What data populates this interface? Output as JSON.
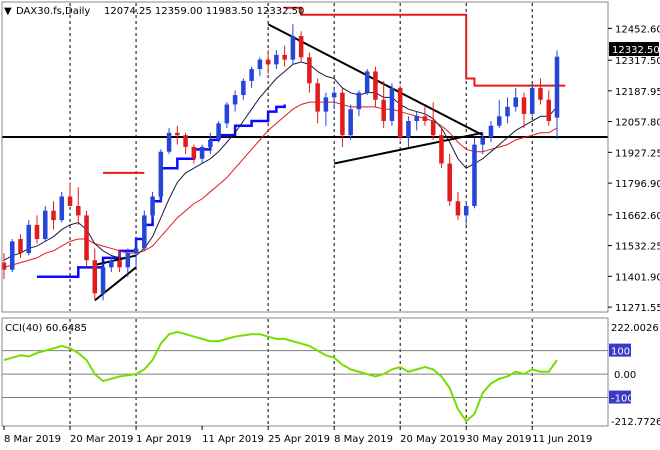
{
  "header": {
    "symbol": "DAX30.fs,Daily",
    "ohlc": "12074.25 12359.00 11983.50 12332.50"
  },
  "indicator": {
    "label": "CCI(40) 60.6485",
    "scale_top": "222.0026",
    "scale_bottom": "-212.7726"
  },
  "colors": {
    "bull": "#2646d8",
    "bear": "#e01d1d",
    "ema_fast": "#1a1a40",
    "ema_slow": "#e01d1d",
    "support_line": "#0a0aff",
    "resistance_line": "#e01d1d",
    "cci": "#77dd00",
    "trend": "#000000"
  },
  "chart_data": {
    "type": "candlestick",
    "price_axis": {
      "ticks": [
        "12452.60",
        "12317.50",
        "12187.95",
        "12057.80",
        "11927.25",
        "11796.90",
        "11662.60",
        "11532.25",
        "11401.90",
        "11271.55"
      ],
      "range": [
        11255,
        12560
      ]
    },
    "current_price": "12332.50",
    "x_axis_labels": [
      {
        "label": "8 Mar 2019",
        "bar": 0
      },
      {
        "label": "20 Mar 2019",
        "bar": 8
      },
      {
        "label": "1 Apr 2019",
        "bar": 16
      },
      {
        "label": "11 Apr 2019",
        "bar": 24
      },
      {
        "label": "25 Apr 2019",
        "bar": 32
      },
      {
        "label": "8 May 2019",
        "bar": 40
      },
      {
        "label": "20 May 2019",
        "bar": 48
      },
      {
        "label": "30 May 2019",
        "bar": 56
      },
      {
        "label": "11 Jun 2019",
        "bar": 64
      }
    ],
    "vertical_separators": [
      8,
      16,
      32,
      40,
      48,
      56,
      64
    ],
    "candles": [
      [
        11460,
        11500,
        11390,
        11430
      ],
      [
        11430,
        11560,
        11420,
        11550
      ],
      [
        11560,
        11580,
        11480,
        11500
      ],
      [
        11500,
        11640,
        11490,
        11620
      ],
      [
        11620,
        11660,
        11540,
        11560
      ],
      [
        11560,
        11700,
        11550,
        11680
      ],
      [
        11680,
        11720,
        11600,
        11640
      ],
      [
        11640,
        11760,
        11630,
        11740
      ],
      [
        11740,
        11800,
        11700,
        11700
      ],
      [
        11700,
        11780,
        11620,
        11660
      ],
      [
        11660,
        11680,
        11440,
        11470
      ],
      [
        11470,
        11520,
        11300,
        11330
      ],
      [
        11330,
        11460,
        11300,
        11440
      ],
      [
        11440,
        11480,
        11420,
        11470
      ],
      [
        11470,
        11510,
        11420,
        11440
      ],
      [
        11440,
        11520,
        11400,
        11500
      ],
      [
        11500,
        11560,
        11440,
        11520
      ],
      [
        11520,
        11680,
        11510,
        11660
      ],
      [
        11660,
        11760,
        11650,
        11740
      ],
      [
        11740,
        11940,
        11720,
        11930
      ],
      [
        11930,
        12030,
        11920,
        12010
      ],
      [
        12010,
        12040,
        11960,
        12000
      ],
      [
        12000,
        12010,
        11920,
        11950
      ],
      [
        11950,
        11960,
        11880,
        11900
      ],
      [
        11900,
        11960,
        11880,
        11950
      ],
      [
        11950,
        12010,
        11920,
        11980
      ],
      [
        11980,
        12060,
        11970,
        12050
      ],
      [
        12050,
        12140,
        12030,
        12130
      ],
      [
        12130,
        12190,
        12100,
        12170
      ],
      [
        12170,
        12240,
        12150,
        12230
      ],
      [
        12230,
        12290,
        12200,
        12280
      ],
      [
        12280,
        12330,
        12250,
        12320
      ],
      [
        12320,
        12360,
        12260,
        12300
      ],
      [
        12300,
        12360,
        12280,
        12340
      ],
      [
        12340,
        12380,
        12290,
        12320
      ],
      [
        12320,
        12470,
        12300,
        12420
      ],
      [
        12420,
        12440,
        12310,
        12330
      ],
      [
        12330,
        12350,
        12180,
        12220
      ],
      [
        12220,
        12240,
        12050,
        12100
      ],
      [
        12100,
        12180,
        12040,
        12160
      ],
      [
        12160,
        12200,
        12110,
        12180
      ],
      [
        12180,
        12200,
        11950,
        12000
      ],
      [
        12000,
        12130,
        11980,
        12110
      ],
      [
        12110,
        12190,
        12080,
        12180
      ],
      [
        12180,
        12280,
        12170,
        12270
      ],
      [
        12270,
        12290,
        12120,
        12150
      ],
      [
        12150,
        12230,
        12030,
        12060
      ],
      [
        12060,
        12220,
        12040,
        12200
      ],
      [
        12200,
        12210,
        11980,
        11990
      ],
      [
        11990,
        12080,
        11950,
        12060
      ],
      [
        12060,
        12100,
        12020,
        12080
      ],
      [
        12080,
        12120,
        12040,
        12060
      ],
      [
        12060,
        12140,
        11980,
        12000
      ],
      [
        12000,
        12030,
        11860,
        11880
      ],
      [
        11880,
        11920,
        11700,
        11720
      ],
      [
        11720,
        11760,
        11640,
        11660
      ],
      [
        11660,
        11720,
        11620,
        11700
      ],
      [
        11700,
        11990,
        11690,
        11960
      ],
      [
        11960,
        12010,
        11920,
        11990
      ],
      [
        11990,
        12060,
        11970,
        12040
      ],
      [
        12040,
        12150,
        12030,
        12080
      ],
      [
        12080,
        12160,
        12050,
        12120
      ],
      [
        12120,
        12200,
        12100,
        12160
      ],
      [
        12160,
        12180,
        12030,
        12090
      ],
      [
        12090,
        12220,
        12080,
        12200
      ],
      [
        12200,
        12240,
        12130,
        12150
      ],
      [
        12150,
        12190,
        12040,
        12060
      ],
      [
        12074.25,
        12359,
        11983.5,
        12332.5
      ]
    ],
    "ema_fast": [
      11470,
      11490,
      11500,
      11520,
      11530,
      11550,
      11570,
      11600,
      11620,
      11630,
      11600,
      11540,
      11510,
      11490,
      11480,
      11480,
      11490,
      11520,
      11570,
      11650,
      11730,
      11800,
      11840,
      11860,
      11880,
      11900,
      11930,
      11970,
      12010,
      12060,
      12110,
      12160,
      12200,
      12240,
      12270,
      12300,
      12310,
      12300,
      12270,
      12250,
      12240,
      12200,
      12180,
      12170,
      12180,
      12180,
      12160,
      12160,
      12130,
      12110,
      12100,
      12090,
      12070,
      12030,
      11970,
      11900,
      11860,
      11880,
      11900,
      11930,
      11960,
      11990,
      12020,
      12040,
      12060,
      12080,
      12080,
      12120
    ],
    "ema_slow": [
      11440,
      11450,
      11460,
      11470,
      11480,
      11500,
      11510,
      11530,
      11550,
      11560,
      11560,
      11540,
      11530,
      11520,
      11510,
      11500,
      11500,
      11510,
      11530,
      11570,
      11610,
      11650,
      11680,
      11710,
      11730,
      11760,
      11790,
      11820,
      11860,
      11900,
      11940,
      11980,
      12020,
      12050,
      12080,
      12110,
      12130,
      12140,
      12140,
      12140,
      12140,
      12130,
      12120,
      12120,
      12120,
      12120,
      12110,
      12110,
      12100,
      12090,
      12080,
      12070,
      12060,
      12040,
      12010,
      11970,
      11940,
      11930,
      11930,
      11940,
      11950,
      11960,
      11980,
      11990,
      12000,
      12010,
      12010,
      12030
    ],
    "support_steps": [
      [
        4,
        11400
      ],
      [
        8,
        11400
      ],
      [
        9,
        11440
      ],
      [
        11,
        11440
      ],
      [
        12,
        11480
      ],
      [
        14,
        11510
      ],
      [
        16,
        11560
      ],
      [
        17,
        11620
      ],
      [
        18,
        11720
      ],
      [
        19,
        11860
      ],
      [
        21,
        11900
      ],
      [
        23,
        11940
      ],
      [
        25,
        11980
      ],
      [
        26,
        12000
      ],
      [
        28,
        12040
      ],
      [
        30,
        12060
      ],
      [
        32,
        12100
      ],
      [
        33,
        12120
      ],
      [
        34,
        12130
      ]
    ],
    "resistance_steps": [
      [
        12,
        11840
      ],
      [
        17,
        11840
      ],
      [
        34,
        12540
      ],
      [
        36,
        12510
      ],
      [
        55,
        12510
      ],
      [
        56,
        12240
      ],
      [
        57,
        12210
      ],
      [
        68,
        12210
      ]
    ],
    "trendlines": [
      [
        [
          32,
          12470
        ],
        [
          58,
          12000
        ]
      ],
      [
        [
          40,
          11880
        ],
        [
          58,
          12010
        ]
      ],
      [
        [
          11,
          11300
        ],
        [
          16,
          11440
        ]
      ],
      [
        [
          11,
          11450
        ],
        [
          16,
          11490
        ]
      ],
      [
        [
          0,
          12010
        ],
        [
          40,
          12010
        ]
      ]
    ],
    "cci": {
      "levels": [
        100,
        0,
        -100
      ],
      "range": [
        -212.7726,
        222.0026
      ],
      "values": [
        60,
        70,
        80,
        75,
        90,
        100,
        110,
        120,
        110,
        90,
        60,
        0,
        -30,
        -20,
        -10,
        -5,
        0,
        20,
        60,
        130,
        170,
        180,
        170,
        160,
        150,
        140,
        140,
        150,
        160,
        165,
        170,
        170,
        160,
        150,
        150,
        140,
        130,
        120,
        100,
        80,
        70,
        40,
        20,
        10,
        0,
        -10,
        0,
        20,
        30,
        10,
        20,
        30,
        20,
        -10,
        -60,
        -150,
        -200,
        -170,
        -80,
        -40,
        -20,
        -10,
        10,
        0,
        20,
        10,
        10,
        60
      ]
    }
  }
}
